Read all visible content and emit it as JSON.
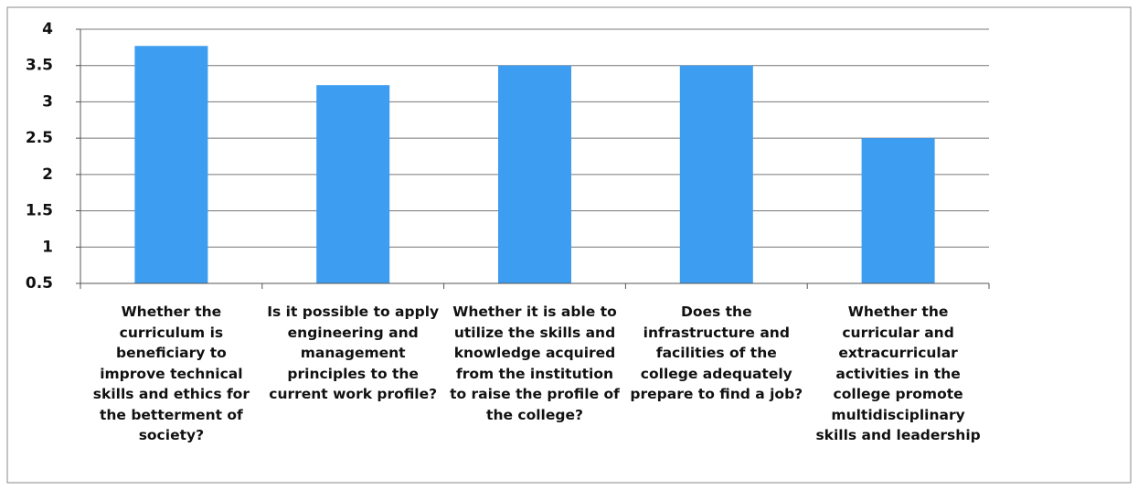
{
  "chart_data": {
    "type": "bar",
    "categories": [
      "Whether the curriculum is beneficiary to improve technical skills and ethics for the betterment of society?",
      "Is it possible to apply engineering and management principles to the current work profile?",
      "Whether it is able to utilize the skills and knowledge acquired from the institution to raise the profile of the college?",
      "Does the infrastructure and facilities of the college adequately prepare to find a job?",
      "Whether the curricular and extracurricular activities in the college promote multidisciplinary skills and leadership"
    ],
    "values": [
      3.77,
      3.23,
      3.5,
      3.5,
      2.5
    ],
    "color": "#3d9df0",
    "ylim": [
      0.5,
      4
    ],
    "yticks": [
      0.5,
      1,
      1.5,
      2,
      2.5,
      3,
      3.5,
      4
    ],
    "grid": true
  }
}
